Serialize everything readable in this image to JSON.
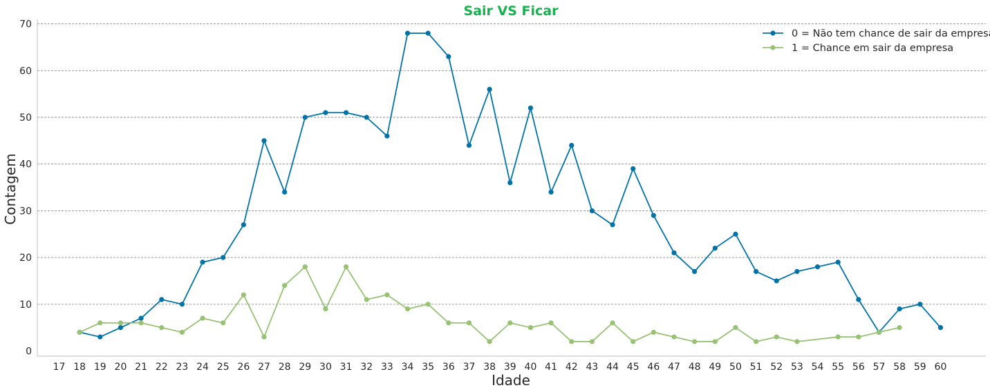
{
  "chart_data": {
    "type": "line",
    "title": "Sair  VS  Ficar",
    "xlabel": "Idade",
    "ylabel": "Contagem",
    "categories": [
      17,
      18,
      19,
      20,
      21,
      22,
      23,
      24,
      25,
      26,
      27,
      28,
      29,
      30,
      31,
      32,
      33,
      34,
      35,
      36,
      37,
      38,
      39,
      40,
      41,
      42,
      43,
      44,
      45,
      46,
      47,
      48,
      49,
      50,
      51,
      52,
      53,
      54,
      55,
      56,
      57,
      58,
      59,
      60
    ],
    "ylim": [
      -1,
      71
    ],
    "yticks": [
      0,
      10,
      20,
      30,
      40,
      50,
      60,
      70
    ],
    "grid": "horizontal dashed",
    "legend_position": "top-right",
    "series": [
      {
        "name": "0 = Não tem chance de sair da empresa",
        "color": "#0072a8",
        "points": [
          [
            18,
            4
          ],
          [
            19,
            3
          ],
          [
            20,
            5
          ],
          [
            21,
            7
          ],
          [
            22,
            11
          ],
          [
            23,
            10
          ],
          [
            24,
            19
          ],
          [
            25,
            20
          ],
          [
            26,
            27
          ],
          [
            27,
            45
          ],
          [
            28,
            34
          ],
          [
            29,
            50
          ],
          [
            30,
            51
          ],
          [
            31,
            51
          ],
          [
            32,
            50
          ],
          [
            33,
            46
          ],
          [
            34,
            68
          ],
          [
            35,
            68
          ],
          [
            36,
            63
          ],
          [
            37,
            44
          ],
          [
            38,
            56
          ],
          [
            39,
            36
          ],
          [
            40,
            52
          ],
          [
            41,
            34
          ],
          [
            42,
            44
          ],
          [
            43,
            30
          ],
          [
            44,
            27
          ],
          [
            45,
            39
          ],
          [
            46,
            29
          ],
          [
            47,
            21
          ],
          [
            48,
            17
          ],
          [
            49,
            22
          ],
          [
            50,
            25
          ],
          [
            51,
            17
          ],
          [
            52,
            15
          ],
          [
            53,
            17
          ],
          [
            54,
            18
          ],
          [
            55,
            19
          ],
          [
            56,
            11
          ],
          [
            57,
            4
          ],
          [
            58,
            9
          ],
          [
            59,
            10
          ],
          [
            60,
            5
          ]
        ]
      },
      {
        "name": "1 = Chance em sair da empresa",
        "color": "#97c173",
        "points": [
          [
            18,
            4
          ],
          [
            19,
            6
          ],
          [
            20,
            6
          ],
          [
            21,
            6
          ],
          [
            22,
            5
          ],
          [
            23,
            4
          ],
          [
            24,
            7
          ],
          [
            25,
            6
          ],
          [
            26,
            12
          ],
          [
            27,
            3
          ],
          [
            28,
            14
          ],
          [
            29,
            18
          ],
          [
            30,
            9
          ],
          [
            31,
            18
          ],
          [
            32,
            11
          ],
          [
            33,
            12
          ],
          [
            34,
            9
          ],
          [
            35,
            10
          ],
          [
            36,
            6
          ],
          [
            37,
            6
          ],
          [
            38,
            2
          ],
          [
            39,
            6
          ],
          [
            40,
            5
          ],
          [
            41,
            6
          ],
          [
            42,
            2
          ],
          [
            43,
            2
          ],
          [
            44,
            6
          ],
          [
            45,
            2
          ],
          [
            46,
            4
          ],
          [
            47,
            3
          ],
          [
            48,
            2
          ],
          [
            49,
            2
          ],
          [
            50,
            5
          ],
          [
            51,
            2
          ],
          [
            52,
            3
          ],
          [
            53,
            2
          ],
          [
            55,
            3
          ],
          [
            56,
            3
          ],
          [
            57,
            4
          ],
          [
            58,
            5
          ]
        ]
      }
    ],
    "colors": {
      "title": "#17b24f",
      "grid": "#8c8c8c",
      "axis": "#cccccc"
    }
  }
}
